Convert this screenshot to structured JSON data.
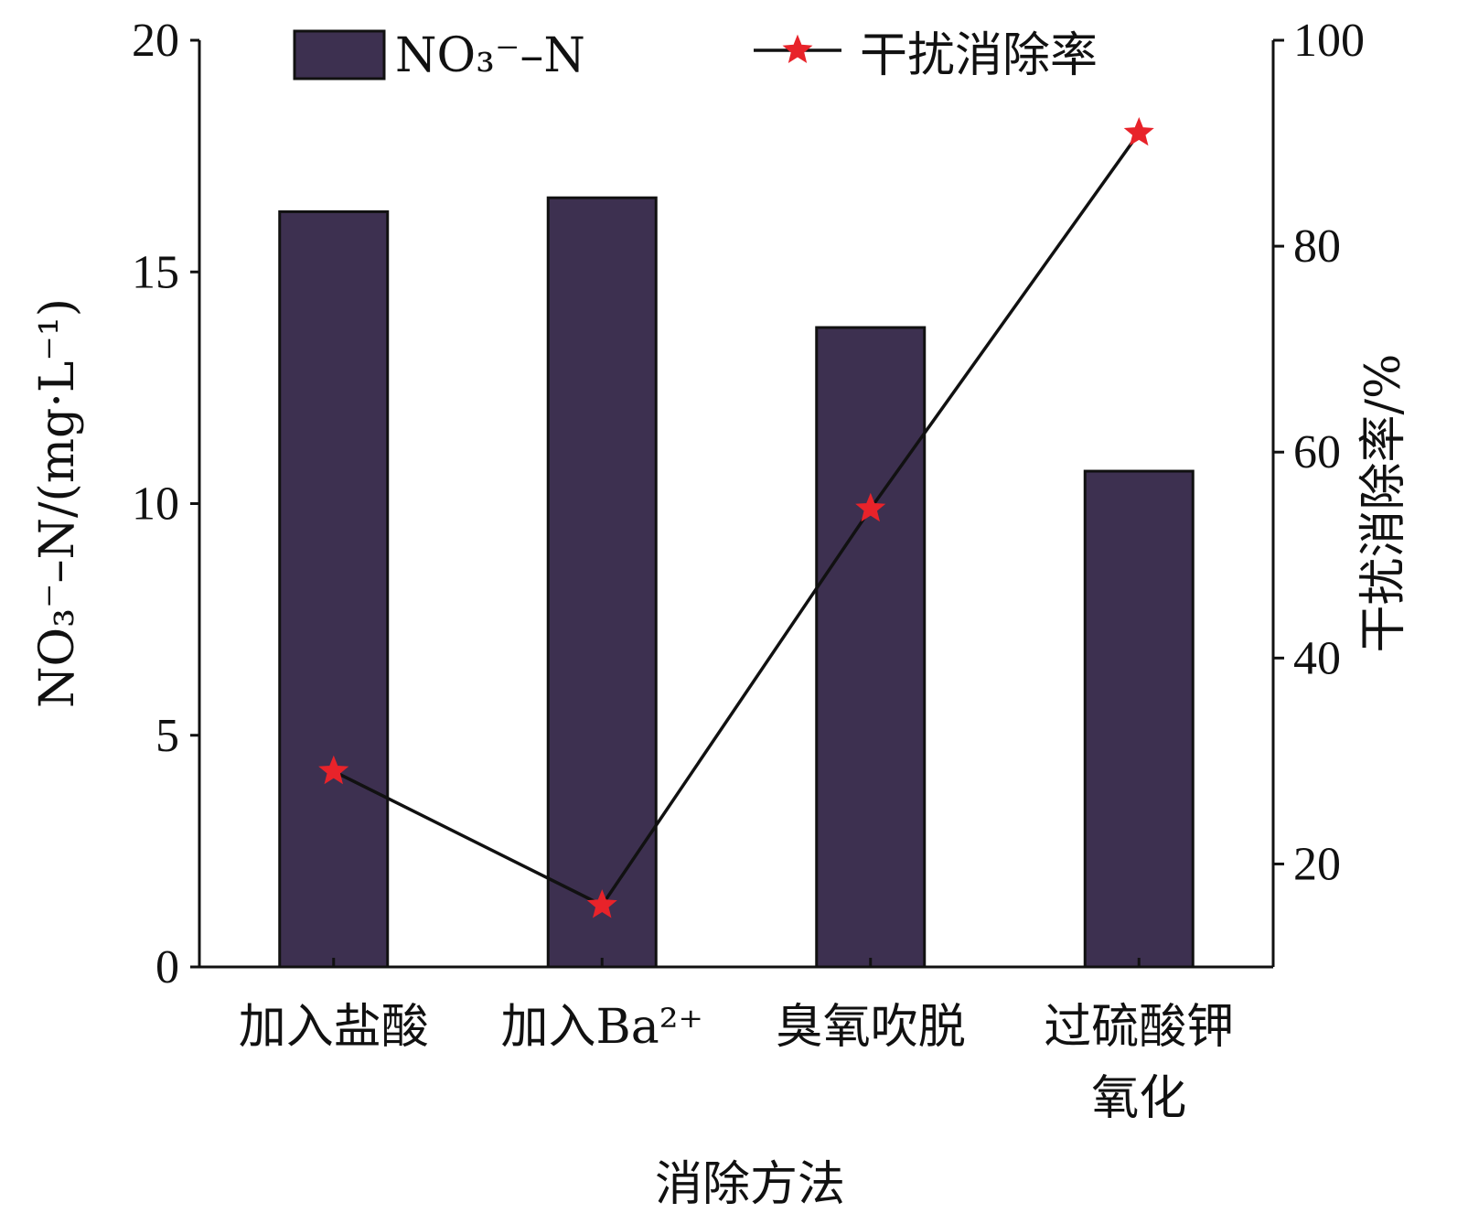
{
  "chart_data": {
    "type": "bar+line",
    "categories": [
      [
        "加入盐酸"
      ],
      [
        "加入Ba²⁺"
      ],
      [
        "臭氧吹脱"
      ],
      [
        "过硫酸钾",
        "氧化"
      ]
    ],
    "series": [
      {
        "name": "NO₃⁻–N",
        "kind": "bar",
        "axis": "left",
        "color": "#3d3050",
        "values": [
          16.3,
          16.6,
          13.8,
          10.7
        ]
      },
      {
        "name": "干扰消除率",
        "kind": "line",
        "axis": "right",
        "color": "#111111",
        "marker": "star",
        "marker_color": "#e8232a",
        "values": [
          29.0,
          16.0,
          54.5,
          91.0
        ]
      }
    ],
    "xlabel": "消除方法",
    "ylabel_left": "NO₃⁻–N/(mg·L⁻¹)",
    "ylabel_right": "干扰消除率/%",
    "ylim_left": [
      0,
      20
    ],
    "ylim_right": [
      10,
      100
    ],
    "yticks_left": [
      0,
      5,
      10,
      15,
      20
    ],
    "yticks_right": [
      20,
      40,
      60,
      80,
      100
    ],
    "legend_placement": "top",
    "grid": false
  }
}
